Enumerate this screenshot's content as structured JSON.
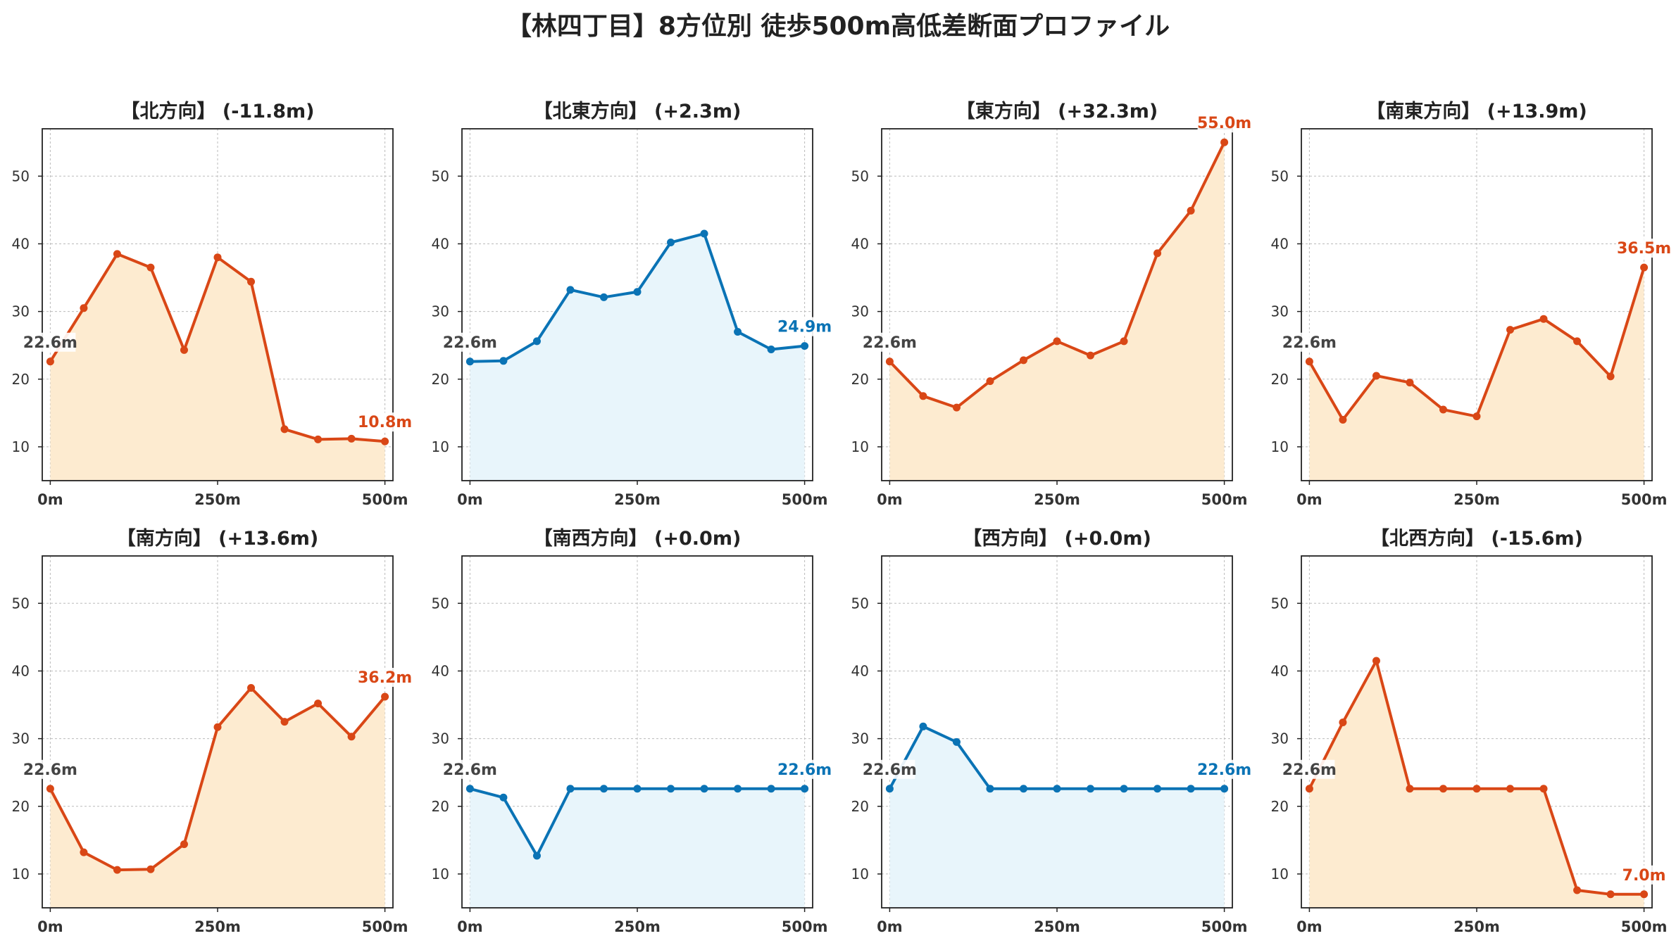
{
  "title": "【林四丁目】8方位別 徒歩500m高低差断面プロファイル",
  "colors": {
    "up_line": "#d94716",
    "up_fill": "#fdebd0",
    "flat_line": "#0a73b5",
    "flat_fill": "#e8f5fb",
    "start_label": "#444444",
    "grid": "#bbbbbb"
  },
  "chart_data": [
    {
      "type": "area",
      "title": "【北方向】 (-11.8m)",
      "color": "up",
      "x": [
        0,
        50,
        100,
        150,
        200,
        250,
        300,
        350,
        400,
        450,
        500
      ],
      "values": [
        22.6,
        30.5,
        38.5,
        36.5,
        24.3,
        38.0,
        34.4,
        12.6,
        11.1,
        11.2,
        10.8
      ],
      "start_label": "22.6m",
      "end_label": "10.8m",
      "xticks": [
        "0m",
        "250m",
        "500m"
      ],
      "yticks": [
        "10",
        "20",
        "30",
        "40",
        "50"
      ],
      "ylim": [
        5,
        57
      ],
      "xlim": [
        -12,
        512
      ],
      "grid": true
    },
    {
      "type": "area",
      "title": "【北東方向】 (+2.3m)",
      "color": "flat",
      "x": [
        0,
        50,
        100,
        150,
        200,
        250,
        300,
        350,
        400,
        450,
        500
      ],
      "values": [
        22.6,
        22.7,
        25.6,
        33.2,
        32.1,
        32.9,
        40.2,
        41.5,
        27.0,
        24.4,
        24.9
      ],
      "start_label": "22.6m",
      "end_label": "24.9m",
      "xticks": [
        "0m",
        "250m",
        "500m"
      ],
      "yticks": [
        "10",
        "20",
        "30",
        "40",
        "50"
      ],
      "ylim": [
        5,
        57
      ],
      "xlim": [
        -12,
        512
      ],
      "grid": true
    },
    {
      "type": "area",
      "title": "【東方向】 (+32.3m)",
      "color": "up",
      "x": [
        0,
        50,
        100,
        150,
        200,
        250,
        300,
        350,
        400,
        450,
        500
      ],
      "values": [
        22.6,
        17.5,
        15.8,
        19.7,
        22.8,
        25.6,
        23.5,
        25.6,
        38.6,
        44.9,
        55.0
      ],
      "start_label": "22.6m",
      "end_label": "55.0m",
      "xticks": [
        "0m",
        "250m",
        "500m"
      ],
      "yticks": [
        "10",
        "20",
        "30",
        "40",
        "50"
      ],
      "ylim": [
        5,
        57
      ],
      "xlim": [
        -12,
        512
      ],
      "grid": true
    },
    {
      "type": "area",
      "title": "【南東方向】 (+13.9m)",
      "color": "up",
      "x": [
        0,
        50,
        100,
        150,
        200,
        250,
        300,
        350,
        400,
        450,
        500
      ],
      "values": [
        22.6,
        14.0,
        20.5,
        19.5,
        15.5,
        14.5,
        27.3,
        28.9,
        25.6,
        20.4,
        36.5
      ],
      "start_label": "22.6m",
      "end_label": "36.5m",
      "xticks": [
        "0m",
        "250m",
        "500m"
      ],
      "yticks": [
        "10",
        "20",
        "30",
        "40",
        "50"
      ],
      "ylim": [
        5,
        57
      ],
      "xlim": [
        -12,
        512
      ],
      "grid": true
    },
    {
      "type": "area",
      "title": "【南方向】 (+13.6m)",
      "color": "up",
      "x": [
        0,
        50,
        100,
        150,
        200,
        250,
        300,
        350,
        400,
        450,
        500
      ],
      "values": [
        22.6,
        13.2,
        10.6,
        10.7,
        14.4,
        31.7,
        37.5,
        32.5,
        35.2,
        30.3,
        36.2
      ],
      "start_label": "22.6m",
      "end_label": "36.2m",
      "xticks": [
        "0m",
        "250m",
        "500m"
      ],
      "yticks": [
        "10",
        "20",
        "30",
        "40",
        "50"
      ],
      "ylim": [
        5,
        57
      ],
      "xlim": [
        -12,
        512
      ],
      "grid": true
    },
    {
      "type": "area",
      "title": "【南西方向】 (+0.0m)",
      "color": "flat",
      "x": [
        0,
        50,
        100,
        150,
        200,
        250,
        300,
        350,
        400,
        450,
        500
      ],
      "values": [
        22.6,
        21.3,
        12.7,
        22.6,
        22.6,
        22.6,
        22.6,
        22.6,
        22.6,
        22.6,
        22.6
      ],
      "start_label": "22.6m",
      "end_label": "22.6m",
      "xticks": [
        "0m",
        "250m",
        "500m"
      ],
      "yticks": [
        "10",
        "20",
        "30",
        "40",
        "50"
      ],
      "ylim": [
        5,
        57
      ],
      "xlim": [
        -12,
        512
      ],
      "grid": true
    },
    {
      "type": "area",
      "title": "【西方向】 (+0.0m)",
      "color": "flat",
      "x": [
        0,
        50,
        100,
        150,
        200,
        250,
        300,
        350,
        400,
        450,
        500
      ],
      "values": [
        22.6,
        31.8,
        29.5,
        22.6,
        22.6,
        22.6,
        22.6,
        22.6,
        22.6,
        22.6,
        22.6
      ],
      "start_label": "22.6m",
      "end_label": "22.6m",
      "xticks": [
        "0m",
        "250m",
        "500m"
      ],
      "yticks": [
        "10",
        "20",
        "30",
        "40",
        "50"
      ],
      "ylim": [
        5,
        57
      ],
      "xlim": [
        -12,
        512
      ],
      "grid": true
    },
    {
      "type": "area",
      "title": "【北西方向】 (-15.6m)",
      "color": "up",
      "x": [
        0,
        50,
        100,
        150,
        200,
        250,
        300,
        350,
        400,
        450,
        500
      ],
      "values": [
        22.6,
        32.4,
        41.5,
        22.6,
        22.6,
        22.6,
        22.6,
        22.6,
        7.6,
        7.0,
        7.0
      ],
      "start_label": "22.6m",
      "end_label": "7.0m",
      "xticks": [
        "0m",
        "250m",
        "500m"
      ],
      "yticks": [
        "10",
        "20",
        "30",
        "40",
        "50"
      ],
      "ylim": [
        5,
        57
      ],
      "xlim": [
        -12,
        512
      ],
      "grid": true
    }
  ]
}
